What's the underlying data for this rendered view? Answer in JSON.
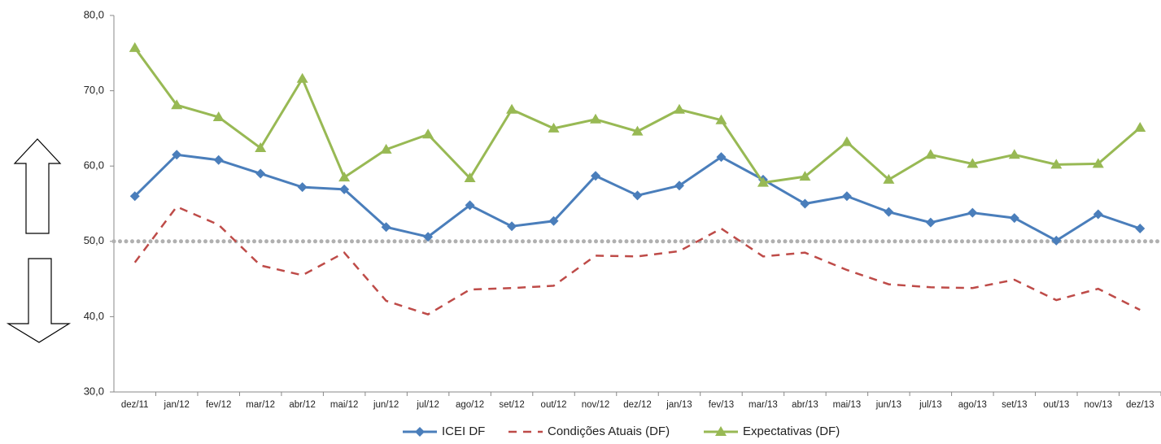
{
  "chart_data": {
    "type": "line",
    "categories": [
      "dez/11",
      "jan/12",
      "fev/12",
      "mar/12",
      "abr/12",
      "mai/12",
      "jun/12",
      "jul/12",
      "ago/12",
      "set/12",
      "out/12",
      "nov/12",
      "dez/12",
      "jan/13",
      "fev/13",
      "mar/13",
      "abr/13",
      "mai/13",
      "jun/13",
      "jul/13",
      "ago/13",
      "set/13",
      "out/13",
      "nov/13",
      "dez/13"
    ],
    "series": [
      {
        "name": "ICEI DF",
        "color": "#4a7ebb",
        "marker": "diamond",
        "dash": false,
        "values": [
          56.0,
          61.5,
          60.8,
          59.0,
          57.2,
          56.9,
          51.9,
          50.6,
          54.8,
          52.0,
          52.7,
          58.7,
          56.1,
          57.4,
          61.2,
          58.2,
          55.0,
          56.0,
          53.9,
          52.5,
          53.8,
          53.1,
          50.1,
          53.6,
          51.7
        ]
      },
      {
        "name": "Condições Atuais (DF)",
        "color": "#be4b48",
        "marker": "none",
        "dash": true,
        "values": [
          47.2,
          54.6,
          52.2,
          46.8,
          45.5,
          48.5,
          42.1,
          40.3,
          43.6,
          43.8,
          44.1,
          48.1,
          48.0,
          48.7,
          51.7,
          48.0,
          48.5,
          46.2,
          44.3,
          43.9,
          43.8,
          44.9,
          42.2,
          43.7,
          40.9
        ]
      },
      {
        "name": "Expectativas (DF)",
        "color": "#98b954",
        "marker": "triangle",
        "dash": false,
        "values": [
          75.7,
          68.1,
          66.5,
          62.4,
          71.6,
          58.5,
          62.2,
          64.2,
          58.4,
          67.5,
          65.0,
          66.2,
          64.6,
          67.5,
          66.1,
          57.8,
          58.6,
          63.2,
          58.2,
          61.5,
          60.3,
          61.5,
          60.2,
          60.3,
          65.1
        ]
      }
    ],
    "ylim": [
      30,
      80
    ],
    "yticks": [
      {
        "value": 30,
        "label": "30,0"
      },
      {
        "value": 40,
        "label": "40,0"
      },
      {
        "value": 50,
        "label": "50,0"
      },
      {
        "value": 60,
        "label": "60,0"
      },
      {
        "value": 70,
        "label": "70,0"
      },
      {
        "value": 80,
        "label": "80,0"
      }
    ],
    "reference_line": {
      "value": 50,
      "color": "#b0b0b0"
    },
    "grid": false,
    "legend": "bottom"
  }
}
